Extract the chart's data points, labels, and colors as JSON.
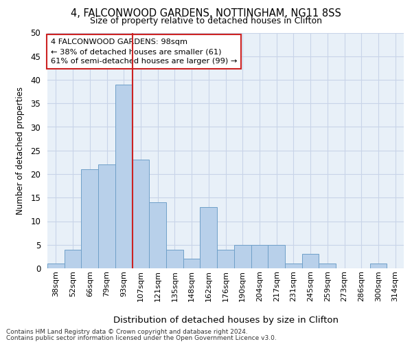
{
  "title1": "4, FALCONWOOD GARDENS, NOTTINGHAM, NG11 8SS",
  "title2": "Size of property relative to detached houses in Clifton",
  "xlabel": "Distribution of detached houses by size in Clifton",
  "ylabel": "Number of detached properties",
  "categories": [
    "38sqm",
    "52sqm",
    "66sqm",
    "79sqm",
    "93sqm",
    "107sqm",
    "121sqm",
    "135sqm",
    "148sqm",
    "162sqm",
    "176sqm",
    "190sqm",
    "204sqm",
    "217sqm",
    "231sqm",
    "245sqm",
    "259sqm",
    "273sqm",
    "286sqm",
    "300sqm",
    "314sqm"
  ],
  "values": [
    1,
    4,
    21,
    22,
    39,
    23,
    14,
    4,
    2,
    13,
    4,
    5,
    5,
    5,
    1,
    3,
    1,
    0,
    0,
    1,
    0
  ],
  "bar_color": "#b8d0ea",
  "bar_edge_color": "#6fa0c8",
  "property_label": "4 FALCONWOOD GARDENS: 98sqm",
  "pct_smaller": 38,
  "count_smaller": 61,
  "pct_larger_semi": 61,
  "count_larger_semi": 99,
  "vline_after_index": 4,
  "vline_color": "#cc2222",
  "annotation_box_color": "#cc2222",
  "ylim": [
    0,
    50
  ],
  "yticks": [
    0,
    5,
    10,
    15,
    20,
    25,
    30,
    35,
    40,
    45,
    50
  ],
  "grid_color": "#c8d4e8",
  "bg_color": "#e8f0f8",
  "footer1": "Contains HM Land Registry data © Crown copyright and database right 2024.",
  "footer2": "Contains public sector information licensed under the Open Government Licence v3.0."
}
